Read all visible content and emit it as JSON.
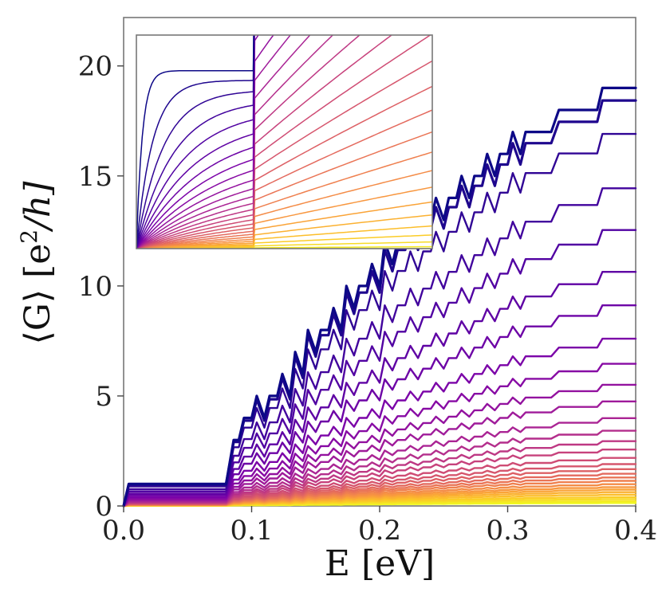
{
  "chart_data": {
    "type": "line",
    "title": "",
    "xlabel": "E [eV]",
    "ylabel_prefix": "⟨G⟩ [e",
    "ylabel_sup": "2",
    "ylabel_suffix": "/h]",
    "xlim": [
      0.0,
      0.4
    ],
    "ylim": [
      0,
      22.2
    ],
    "xticks": [
      "0.0",
      "0.1",
      "0.2",
      "0.3",
      "0.4"
    ],
    "xtick_values": [
      0.0,
      0.1,
      0.2,
      0.3,
      0.4
    ],
    "yticks": [
      "0",
      "5",
      "10",
      "15",
      "20"
    ],
    "ytick_values": [
      0,
      5,
      10,
      15,
      20
    ],
    "grid": false,
    "legend": "none",
    "series_count": 30,
    "series_amplitudes": [
      1.0,
      0.97,
      0.89,
      0.76,
      0.66,
      0.56,
      0.48,
      0.4,
      0.34,
      0.29,
      0.25,
      0.21,
      0.18,
      0.155,
      0.135,
      0.115,
      0.1,
      0.088,
      0.077,
      0.068,
      0.06,
      0.052,
      0.045,
      0.039,
      0.033,
      0.027,
      0.021,
      0.016,
      0.011,
      0.007
    ],
    "top_series": {
      "x": [
        0.0,
        0.004,
        0.08,
        0.083,
        0.086,
        0.09,
        0.094,
        0.1,
        0.104,
        0.11,
        0.114,
        0.12,
        0.124,
        0.13,
        0.134,
        0.14,
        0.144,
        0.15,
        0.154,
        0.16,
        0.164,
        0.17,
        0.174,
        0.18,
        0.184,
        0.19,
        0.194,
        0.2,
        0.204,
        0.21,
        0.214,
        0.22,
        0.224,
        0.23,
        0.234,
        0.24,
        0.244,
        0.25,
        0.254,
        0.26,
        0.264,
        0.27,
        0.274,
        0.28,
        0.284,
        0.29,
        0.294,
        0.3,
        0.304,
        0.31,
        0.314,
        0.32,
        0.324,
        0.33,
        0.334,
        0.34,
        0.344,
        0.35,
        0.354,
        0.36,
        0.364,
        0.37,
        0.374,
        0.38,
        0.384,
        0.39,
        0.394,
        0.4
      ],
      "y": [
        0,
        1,
        1,
        2,
        3,
        3,
        4,
        4,
        5,
        4,
        5,
        5,
        6,
        5,
        7,
        6,
        8,
        7,
        8,
        8,
        9,
        8,
        10,
        9,
        10,
        10,
        11,
        10,
        12,
        11,
        12,
        12,
        13,
        12,
        13,
        13,
        14,
        13,
        14,
        14,
        15,
        14,
        15,
        15,
        16,
        15,
        16,
        16,
        17,
        16,
        17,
        17,
        17,
        17,
        17,
        18,
        18,
        18,
        18,
        18,
        18,
        18,
        19,
        19,
        19,
        19,
        19,
        19
      ]
    },
    "inset": {
      "type": "line",
      "description_series": "zoom of low-energy conductance, same color scale",
      "xlim": [
        0.0,
        0.2
      ],
      "ylim": [
        0,
        1.2
      ],
      "step_x": 0.08,
      "series_count": 30
    },
    "colormap": [
      "#0d0887",
      "#4c02a1",
      "#7e03a8",
      "#a92395",
      "#cc4778",
      "#e56b5d",
      "#f89441",
      "#fdc328",
      "#f0f921"
    ]
  }
}
